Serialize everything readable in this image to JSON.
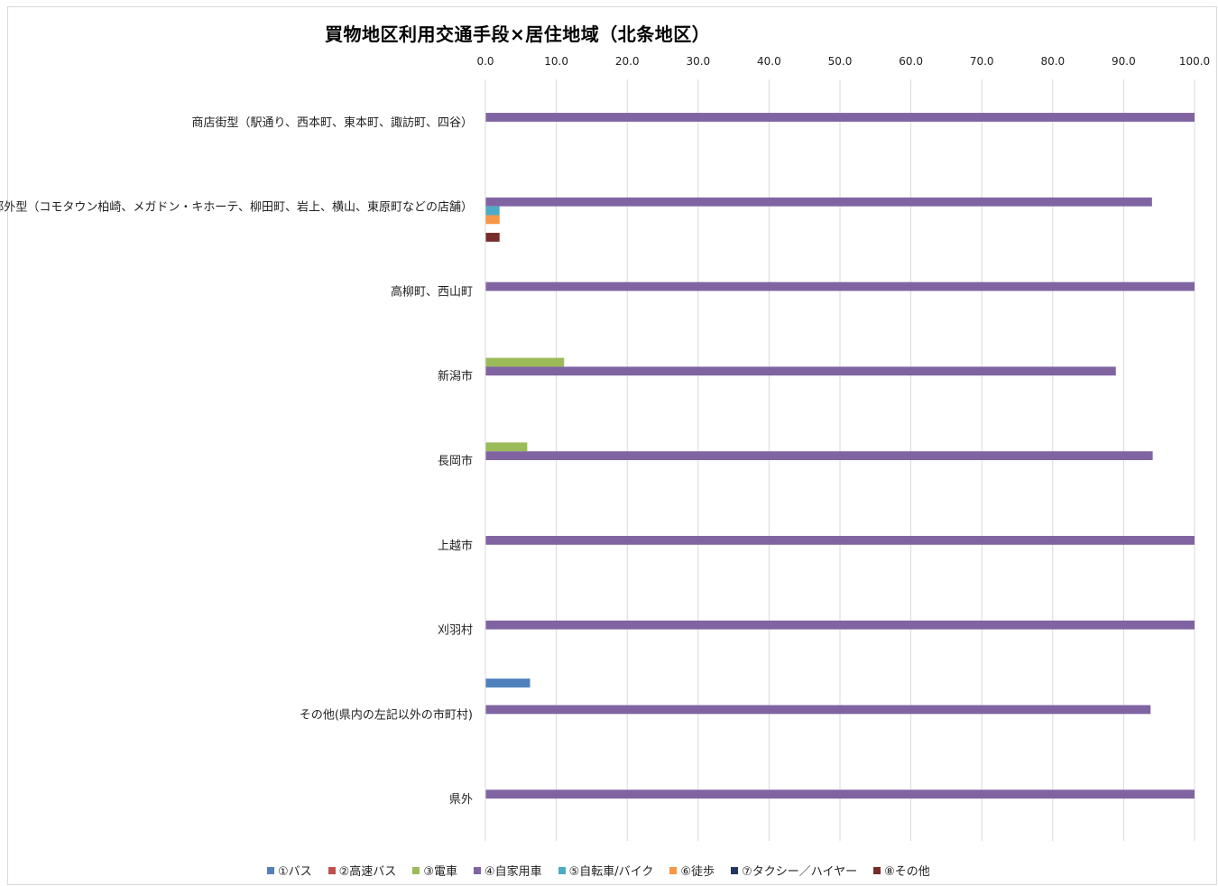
{
  "chart_data": {
    "type": "bar",
    "orientation": "horizontal",
    "title": "買物地区利用交通手段×居住地域（北条地区）",
    "xlim": [
      0,
      100
    ],
    "x_ticks": [
      "0.0",
      "10.0",
      "20.0",
      "30.0",
      "40.0",
      "50.0",
      "60.0",
      "70.0",
      "80.0",
      "90.0",
      "100.0"
    ],
    "x_axis_position": "top",
    "grid": "vertical",
    "legend_position": "bottom",
    "categories": [
      "商店街型（駅通り、西本町、東本町、諏訪町、四谷）",
      "郊外型（コモタウン柏崎、メガドン・キホーテ、柳田町、岩上、横山、東原町などの店舗）",
      "高柳町、西山町",
      "新潟市",
      "長岡市",
      "上越市",
      "刈羽村",
      "その他(県内の左記以外の市町村)",
      "県外"
    ],
    "series": [
      {
        "name": "①バス",
        "color": "#4f81bd",
        "values": [
          0,
          0,
          0,
          0,
          0,
          0,
          0,
          6.3,
          0
        ]
      },
      {
        "name": "②高速バス",
        "color": "#c0504d",
        "values": [
          0,
          0,
          0,
          0,
          0,
          0,
          0,
          0,
          0
        ]
      },
      {
        "name": "③電車",
        "color": "#9bbb59",
        "values": [
          0,
          0,
          0,
          11.1,
          5.9,
          0,
          0,
          0,
          0
        ]
      },
      {
        "name": "④自家用車",
        "color": "#8064a2",
        "values": [
          100,
          94,
          100,
          88.9,
          94.1,
          100,
          100,
          93.8,
          100
        ]
      },
      {
        "name": "⑤自転車/バイク",
        "color": "#4bacc6",
        "values": [
          0,
          2,
          0,
          0,
          0,
          0,
          0,
          0,
          0
        ]
      },
      {
        "name": "⑥徒歩",
        "color": "#f79646",
        "values": [
          0,
          2,
          0,
          0,
          0,
          0,
          0,
          0,
          0
        ]
      },
      {
        "name": "⑦タクシー／ハイヤー",
        "color": "#1f3864",
        "values": [
          0,
          0,
          0,
          0,
          0,
          0,
          0,
          0,
          0
        ]
      },
      {
        "name": "⑧その他",
        "color": "#772c2a",
        "values": [
          0,
          2,
          0,
          0,
          0,
          0,
          0,
          0,
          0
        ]
      }
    ]
  }
}
